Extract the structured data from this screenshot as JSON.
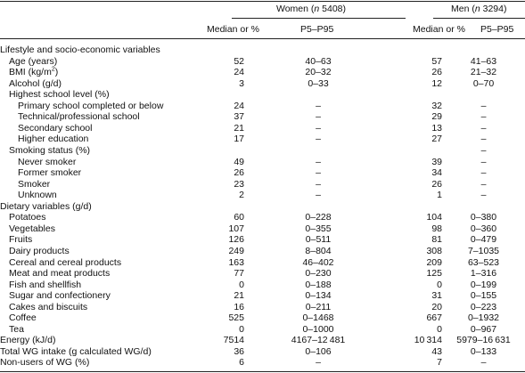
{
  "header": {
    "women_label": "Women (",
    "women_n": "n",
    "women_count": " 5408)",
    "men_label": "Men (",
    "men_n": "n",
    "men_count": " 3294)",
    "col_median": "Median or %",
    "col_range": "P5–P95"
  },
  "rows": [
    {
      "label": "Lifestyle and socio-economic variables",
      "indent": 0,
      "w_med": "",
      "w_rng": "",
      "m_med": "",
      "m_rng": ""
    },
    {
      "label": "Age (years)",
      "indent": 1,
      "w_med": "52",
      "w_rng": "40–63",
      "m_med": "57",
      "m_rng": "41–63"
    },
    {
      "label": "BMI (kg/m",
      "sup": "2",
      "label_after": ")",
      "indent": 1,
      "w_med": "24",
      "w_rng": "20–32",
      "m_med": "26",
      "m_rng": "21–32"
    },
    {
      "label": "Alcohol (g/d)",
      "indent": 1,
      "w_med": "3",
      "w_rng": "0–33",
      "m_med": "12",
      "m_rng": "0–70"
    },
    {
      "label": "Highest school level (%)",
      "indent": 1,
      "w_med": "",
      "w_rng": "",
      "m_med": "",
      "m_rng": ""
    },
    {
      "label": "Primary school completed or below",
      "indent": 2,
      "w_med": "24",
      "w_rng": "–",
      "m_med": "32",
      "m_rng": "–"
    },
    {
      "label": "Technical/professional school",
      "indent": 2,
      "w_med": "37",
      "w_rng": "–",
      "m_med": "29",
      "m_rng": "–"
    },
    {
      "label": "Secondary school",
      "indent": 2,
      "w_med": "21",
      "w_rng": "–",
      "m_med": "13",
      "m_rng": "–"
    },
    {
      "label": "Higher education",
      "indent": 2,
      "w_med": "17",
      "w_rng": "–",
      "m_med": "27",
      "m_rng": "–"
    },
    {
      "label": "Smoking status (%)",
      "indent": 1,
      "w_med": "",
      "w_rng": "",
      "m_med": "",
      "m_rng": "–"
    },
    {
      "label": "Never smoker",
      "indent": 2,
      "w_med": "49",
      "w_rng": "–",
      "m_med": "39",
      "m_rng": "–"
    },
    {
      "label": "Former smoker",
      "indent": 2,
      "w_med": "26",
      "w_rng": "–",
      "m_med": "34",
      "m_rng": "–"
    },
    {
      "label": "Smoker",
      "indent": 2,
      "w_med": "23",
      "w_rng": "–",
      "m_med": "26",
      "m_rng": "–"
    },
    {
      "label": "Unknown",
      "indent": 2,
      "w_med": "2",
      "w_rng": "–",
      "m_med": "1",
      "m_rng": "–"
    },
    {
      "label": "Dietary variables (g/d)",
      "indent": 0,
      "w_med": "",
      "w_rng": "",
      "m_med": "",
      "m_rng": ""
    },
    {
      "label": "Potatoes",
      "indent": 1,
      "w_med": "60",
      "w_rng": "0–228",
      "m_med": "104",
      "m_rng": "0–380"
    },
    {
      "label": "Vegetables",
      "indent": 1,
      "w_med": "107",
      "w_rng": "0–355",
      "m_med": "98",
      "m_rng": "0–360"
    },
    {
      "label": "Fruits",
      "indent": 1,
      "w_med": "126",
      "w_rng": "0–511",
      "m_med": "81",
      "m_rng": "0–479"
    },
    {
      "label": "Dairy products",
      "indent": 1,
      "w_med": "249",
      "w_rng": "8–804",
      "m_med": "308",
      "m_rng": "7–1035"
    },
    {
      "label": "Cereal and cereal products",
      "indent": 1,
      "w_med": "163",
      "w_rng": "46–402",
      "m_med": "209",
      "m_rng": "63–523"
    },
    {
      "label": "Meat and meat products",
      "indent": 1,
      "w_med": "77",
      "w_rng": "0–230",
      "m_med": "125",
      "m_rng": "1–316"
    },
    {
      "label": "Fish and shellfish",
      "indent": 1,
      "w_med": "0",
      "w_rng": "0–188",
      "m_med": "0",
      "m_rng": "0–199"
    },
    {
      "label": "Sugar and confectionery",
      "indent": 1,
      "w_med": "21",
      "w_rng": "0–134",
      "m_med": "31",
      "m_rng": "0–155"
    },
    {
      "label": "Cakes and biscuits",
      "indent": 1,
      "w_med": "16",
      "w_rng": "0–211",
      "m_med": "20",
      "m_rng": "0–223"
    },
    {
      "label": "Coffee",
      "indent": 1,
      "w_med": "525",
      "w_rng": "0–1468",
      "m_med": "667",
      "m_rng": "0–1932"
    },
    {
      "label": "Tea",
      "indent": 1,
      "w_med": "0",
      "w_rng": "0–1000",
      "m_med": "0",
      "m_rng": "0–967"
    },
    {
      "label": "Energy (kJ/d)",
      "indent": 0,
      "w_med": "7514",
      "w_rng": "4167–12 481",
      "m_med": "10 314",
      "m_rng": "5979–16 631"
    },
    {
      "label": "Total WG intake (g calculated WG/d)",
      "indent": 0,
      "w_med": "36",
      "w_rng": "0–106",
      "m_med": "43",
      "m_rng": "0–133"
    },
    {
      "label": "Non-users of WG (%)",
      "indent": 0,
      "w_med": "6",
      "w_rng": "–",
      "m_med": "7",
      "m_rng": "–"
    }
  ]
}
